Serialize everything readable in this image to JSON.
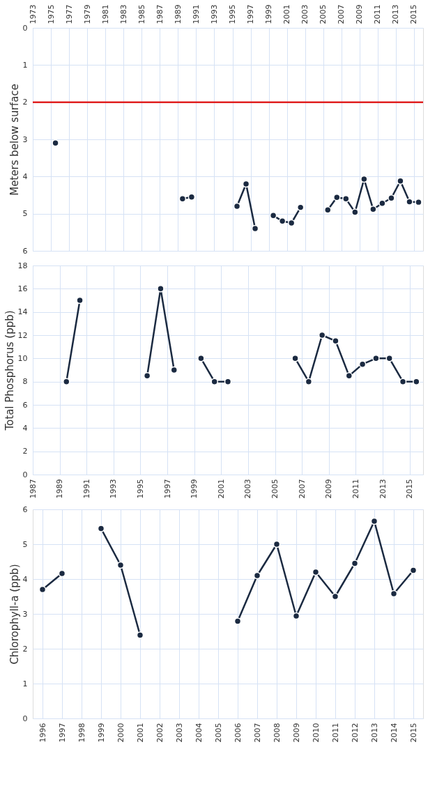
{
  "chart_data": [
    {
      "type": "line",
      "ylabel": "Meters below surface",
      "xlim": [
        1973,
        2016
      ],
      "xticks": [
        1973,
        1975,
        1977,
        1979,
        1981,
        1983,
        1985,
        1987,
        1989,
        1991,
        1993,
        1995,
        1997,
        1999,
        2001,
        2003,
        2005,
        2007,
        2009,
        2011,
        2013,
        2015
      ],
      "ylim": [
        6,
        0
      ],
      "yticks": [
        0,
        1,
        2,
        3,
        4,
        5,
        6
      ],
      "grid": true,
      "marker": "circle",
      "line_style": "solid",
      "x": [
        1975.5,
        1976.5,
        1989.5,
        1990.5,
        1991.5,
        1995.5,
        1996.5,
        1997.5,
        1998.5,
        1999.5,
        2000.5,
        2001.5,
        2002.5,
        2003.5,
        2005.5,
        2006.5,
        2007.5,
        2008.5,
        2009.5,
        2010.5,
        2011.5,
        2012.5,
        2013.5,
        2014.5,
        2015.5
      ],
      "series": [
        {
          "color": "#1b2a41",
          "values": [
            3.1,
            null,
            4.6,
            4.55,
            null,
            4.8,
            4.2,
            5.4,
            null,
            5.05,
            5.2,
            5.25,
            4.83,
            null,
            4.9,
            4.56,
            4.6,
            4.96,
            4.07,
            4.88,
            4.72,
            4.58,
            4.12,
            4.68,
            4.69
          ]
        }
      ],
      "ref_lines": [
        {
          "axis": "y",
          "value": 2,
          "color": "#e02020"
        }
      ]
    },
    {
      "type": "line",
      "ylabel": "Total Phosphorus (ppb)",
      "xlim": [
        1987,
        2016
      ],
      "xticks": [
        1987,
        1989,
        1991,
        1993,
        1995,
        1997,
        1999,
        2001,
        2003,
        2005,
        2007,
        2009,
        2011,
        2013,
        2015
      ],
      "ylim": [
        0,
        18
      ],
      "yticks": [
        0,
        2,
        4,
        6,
        8,
        10,
        12,
        14,
        16,
        18
      ],
      "grid": true,
      "marker": "circle",
      "line_style": "solid",
      "x": [
        1989.5,
        1990.5,
        1991.5,
        1995.5,
        1996.5,
        1997.5,
        1998.5,
        1999.5,
        2000.5,
        2001.5,
        2002.5,
        2006.5,
        2007.5,
        2008.5,
        2009.5,
        2010.5,
        2011.5,
        2012.5,
        2013.5,
        2014.5,
        2015.5
      ],
      "series": [
        {
          "color": "#1b2a41",
          "values": [
            8,
            15,
            null,
            8.5,
            16,
            9,
            null,
            10,
            8,
            8,
            null,
            10,
            8,
            12,
            11.5,
            8.5,
            9.5,
            10,
            10,
            8,
            8
          ]
        }
      ]
    },
    {
      "type": "line",
      "ylabel": "Chlorophyll-a (ppb)",
      "categories": [
        "1996",
        "1997",
        "1998",
        "1999",
        "2000",
        "2001",
        "2002",
        "2003",
        "2004",
        "2005",
        "2006",
        "2007",
        "2008",
        "2009",
        "2010",
        "2011",
        "2012",
        "2013",
        "2014",
        "2015"
      ],
      "ylim": [
        0,
        6
      ],
      "yticks": [
        0,
        1,
        2,
        3,
        4,
        5,
        6
      ],
      "grid": true,
      "marker": "circle",
      "line_style": "solid",
      "series": [
        {
          "color": "#1b2a41",
          "values": [
            3.7,
            4.16,
            null,
            5.45,
            4.4,
            2.39,
            null,
            null,
            null,
            null,
            2.79,
            4.1,
            5.0,
            2.94,
            4.2,
            3.5,
            4.45,
            5.66,
            3.58,
            4.25
          ]
        }
      ]
    }
  ]
}
